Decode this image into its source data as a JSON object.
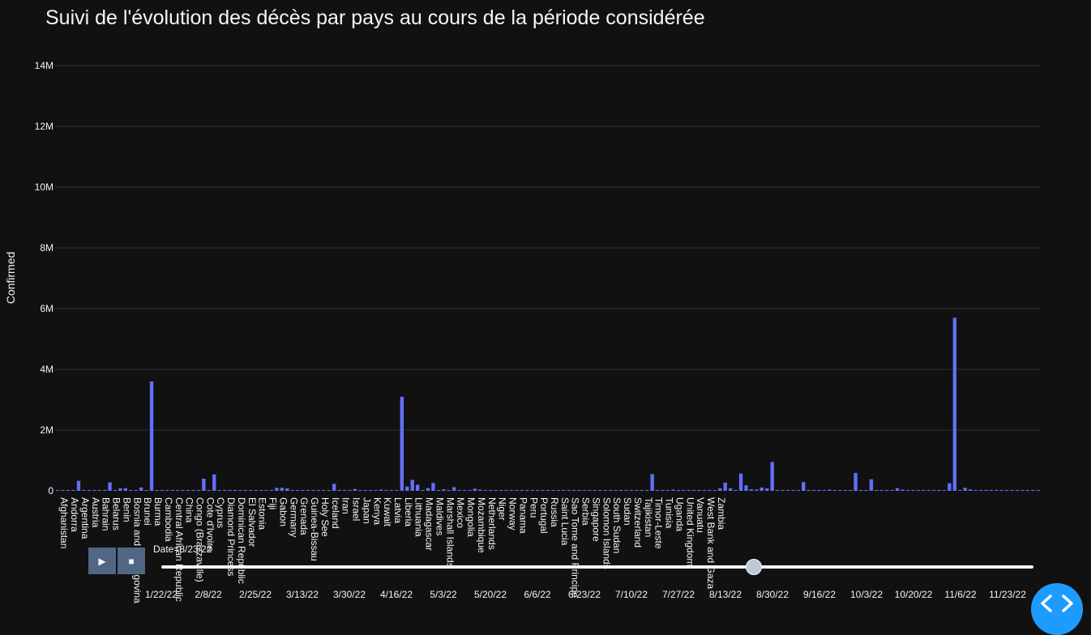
{
  "chart_data": {
    "type": "bar",
    "title": "Suivi de l'évolution des décès par pays au cours de la période considérée",
    "xlabel": "",
    "ylabel": "Confirmed",
    "ylim": [
      0,
      14000000
    ],
    "yticks": [
      0,
      2000000,
      4000000,
      6000000,
      8000000,
      10000000,
      12000000,
      14000000
    ],
    "ytick_labels": [
      "0",
      "2M",
      "4M",
      "6M",
      "8M",
      "10M",
      "12M",
      "14M"
    ],
    "grid": true,
    "bar_color": "#636efa",
    "tick_labels": [
      "Afghanistan",
      "Andorra",
      "Argentina",
      "Austria",
      "Bahrain",
      "Belarus",
      "Benin",
      "Bosnia and Herzegovina",
      "Brunei",
      "Burma",
      "Cambodia",
      "Central African Republic",
      "China",
      "Congo (Brazzaville)",
      "Cote d'Ivoire",
      "Cyprus",
      "Diamond Princess",
      "Dominican Republic",
      "El Salvador",
      "Estonia",
      "Fiji",
      "Gabon",
      "Germany",
      "Grenada",
      "Guinea-Bissau",
      "Holy See",
      "Iceland",
      "Iran",
      "Israel",
      "Japan",
      "Kenya",
      "Kuwait",
      "Latvia",
      "Liberia",
      "Lithuania",
      "Madagascar",
      "Maldives",
      "Marshall Islands",
      "Mexico",
      "Mongolia",
      "Mozambique",
      "Netherlands",
      "Niger",
      "Norway",
      "Panama",
      "Peru",
      "Portugal",
      "Russia",
      "Saint Lucia",
      "Sao Tome and Principe",
      "Serbia",
      "Singapore",
      "Solomon Islands",
      "South Sudan",
      "Sudan",
      "Switzerland",
      "Tajikistan",
      "Timor-Leste",
      "Tunisia",
      "Uganda",
      "United Kingdom",
      "Vanuatu",
      "West Bank and Gaza",
      "Zambia"
    ],
    "tick_every": 2,
    "values": [
      20000,
      5000,
      10000,
      5000,
      330000,
      30000,
      5000,
      20000,
      5000,
      30000,
      280000,
      20000,
      80000,
      90000,
      5000,
      5000,
      110000,
      5000,
      3600000,
      3000,
      5000,
      3000,
      2000,
      2000,
      3000,
      2000,
      2000,
      1000,
      400000,
      5000,
      540000,
      5000,
      5000,
      30000,
      2000,
      2000,
      1000,
      2000,
      5000,
      5000,
      1000,
      2000,
      100000,
      100000,
      80000,
      5000,
      1000,
      5000,
      20000,
      1000,
      5000,
      1000,
      5000,
      230000,
      30000,
      5000,
      5000,
      60000,
      5000,
      5000,
      2000,
      3000,
      40000,
      2000,
      2000,
      2000,
      3100000,
      140000,
      360000,
      200000,
      20000,
      90000,
      260000,
      10000,
      50000,
      5000,
      120000,
      20000,
      5000,
      5000,
      70000,
      40000,
      5000,
      1000,
      1000,
      1000,
      1000,
      1000,
      1000,
      1000,
      1000,
      1000,
      1000,
      1000,
      1000,
      1000,
      1000,
      1000,
      1000,
      1000,
      1000,
      1000,
      1000,
      1000,
      1000,
      1000,
      1000,
      1000,
      1000,
      1000,
      1000,
      1000,
      1000,
      1000,
      550000,
      20000,
      5000,
      5000,
      40000,
      5000,
      5000,
      20000,
      5000,
      1000,
      1000,
      30000,
      5000,
      80000,
      270000,
      80000,
      5000,
      570000,
      180000,
      50000,
      40000,
      110000,
      80000,
      950000,
      1000,
      5000,
      1000,
      1000,
      10000,
      290000,
      5000,
      20000,
      5000,
      5000,
      40000,
      5000,
      5000,
      5000,
      1000,
      590000,
      20000,
      5000,
      380000,
      5000,
      5000,
      5000,
      5000,
      90000,
      40000,
      5000,
      1000,
      1000,
      1000,
      1000,
      1000,
      5000,
      5000,
      250000,
      5700000,
      5000,
      100000,
      50000,
      5000,
      1000,
      30000,
      5000,
      30000,
      5000,
      5000,
      5000,
      1000,
      1000,
      1000,
      1000,
      1000
    ]
  },
  "slider": {
    "current_label": "Date=8/23/22",
    "tick_labels": [
      "1/22/22",
      "2/8/22",
      "2/25/22",
      "3/13/22",
      "3/30/22",
      "4/16/22",
      "5/3/22",
      "5/20/22",
      "6/6/22",
      "6/23/22",
      "7/10/22",
      "7/27/22",
      "8/13/22",
      "8/30/22",
      "9/16/22",
      "10/3/22",
      "10/20/22",
      "11/6/22",
      "11/23/22"
    ],
    "position": 0.679
  },
  "controls": {
    "play_label": "▶",
    "stop_label": "■"
  },
  "icons": {
    "nav": "code-brackets-icon"
  }
}
